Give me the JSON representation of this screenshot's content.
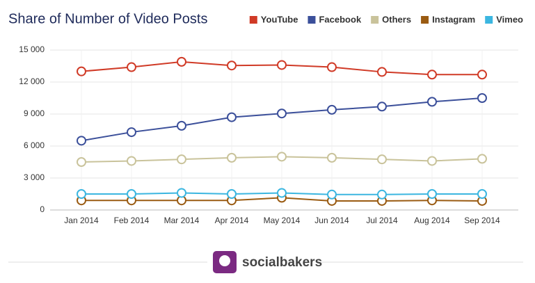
{
  "chart_data": {
    "type": "line",
    "title": "Share of Number of Video Posts",
    "categories": [
      "Jan 2014",
      "Feb 2014",
      "Mar 2014",
      "Apr 2014",
      "May 2014",
      "Jun 2014",
      "Jul 2014",
      "Aug 2014",
      "Sep 2014"
    ],
    "series": [
      {
        "name": "YouTube",
        "color": "#d03a26",
        "values": [
          13000,
          13400,
          13900,
          13550,
          13600,
          13400,
          12950,
          12700,
          12700
        ]
      },
      {
        "name": "Facebook",
        "color": "#3b4f9a",
        "values": [
          6500,
          7300,
          7900,
          8700,
          9050,
          9400,
          9700,
          10150,
          10500
        ]
      },
      {
        "name": "Others",
        "color": "#c9c39b",
        "values": [
          4500,
          4600,
          4750,
          4900,
          5000,
          4900,
          4750,
          4600,
          4800
        ]
      },
      {
        "name": "Instagram",
        "color": "#9a5b12",
        "values": [
          900,
          900,
          900,
          900,
          1150,
          850,
          850,
          900,
          850
        ]
      },
      {
        "name": "Vimeo",
        "color": "#3bb6e0",
        "values": [
          1500,
          1500,
          1600,
          1500,
          1600,
          1450,
          1450,
          1500,
          1500
        ]
      }
    ],
    "ylim": [
      0,
      15000
    ],
    "yticks": [
      0,
      {
        "value": 3000,
        "label": "3 000"
      },
      {
        "value": 6000,
        "label": "6 000"
      },
      {
        "value": 9000,
        "label": "9 000"
      },
      {
        "value": 12000,
        "label": "12 000"
      },
      {
        "value": 15000,
        "label": "15 000"
      }
    ],
    "grid": true,
    "legend": "top-right"
  },
  "brand": "socialbakers"
}
